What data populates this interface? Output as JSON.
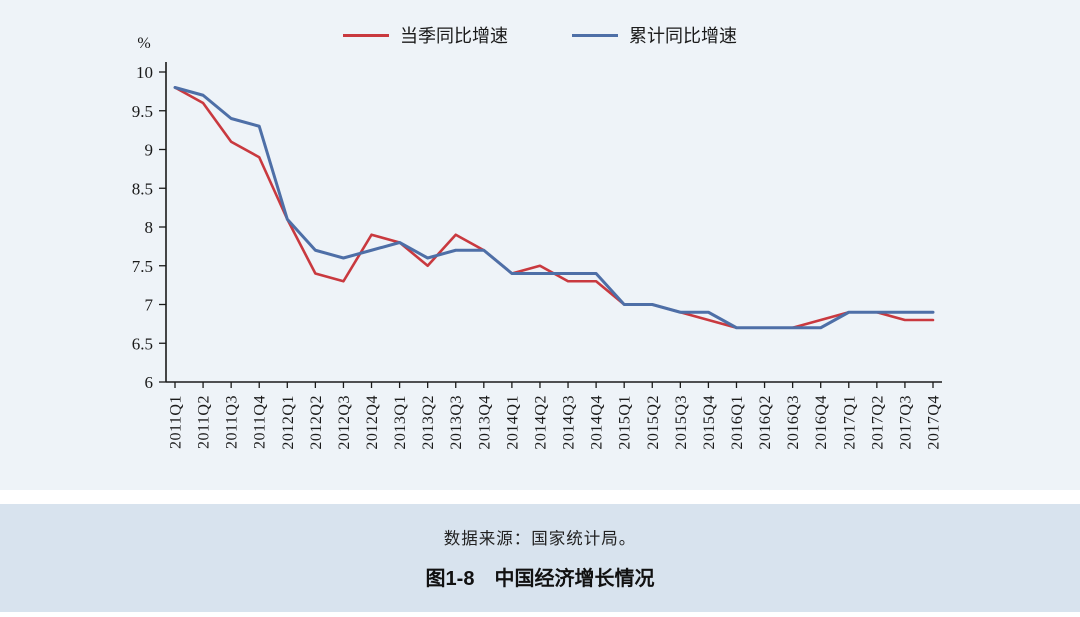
{
  "chart_data": {
    "type": "line",
    "title": "图1-8　中国经济增长情况",
    "source_note": "数据来源：国家统计局。",
    "ylabel": "%",
    "ylim": [
      6,
      10
    ],
    "ytick_step": 0.5,
    "grid": false,
    "legend_position": "top-center",
    "categories": [
      "2011Q1",
      "2011Q2",
      "2011Q3",
      "2011Q4",
      "2012Q1",
      "2012Q2",
      "2012Q3",
      "2012Q4",
      "2013Q1",
      "2013Q2",
      "2013Q3",
      "2013Q4",
      "2014Q1",
      "2014Q2",
      "2014Q3",
      "2014Q4",
      "2015Q1",
      "2015Q2",
      "2015Q3",
      "2015Q4",
      "2016Q1",
      "2016Q2",
      "2016Q3",
      "2016Q4",
      "2017Q1",
      "2017Q2",
      "2017Q3",
      "2017Q4"
    ],
    "series": [
      {
        "name": "当季同比增速",
        "color": "#c9393f",
        "values": [
          9.8,
          9.6,
          9.1,
          8.9,
          8.1,
          7.4,
          7.3,
          7.9,
          7.8,
          7.5,
          7.9,
          7.7,
          7.4,
          7.5,
          7.3,
          7.3,
          7.0,
          7.0,
          6.9,
          6.8,
          6.7,
          6.7,
          6.7,
          6.8,
          6.9,
          6.9,
          6.8,
          6.8
        ]
      },
      {
        "name": "累计同比增速",
        "color": "#4e6fa7",
        "values": [
          9.8,
          9.7,
          9.4,
          9.3,
          8.1,
          7.7,
          7.6,
          7.7,
          7.8,
          7.6,
          7.7,
          7.7,
          7.4,
          7.4,
          7.4,
          7.4,
          7.0,
          7.0,
          6.9,
          6.9,
          6.7,
          6.7,
          6.7,
          6.7,
          6.9,
          6.9,
          6.9,
          6.9
        ]
      }
    ]
  },
  "caption": {
    "source": "数据来源：国家统计局。",
    "title": "图1-8　中国经济增长情况"
  },
  "colors": {
    "chart_bg": "#eef3f8",
    "caption_bg": "#d8e3ee",
    "axis": "#1a1a1a"
  }
}
